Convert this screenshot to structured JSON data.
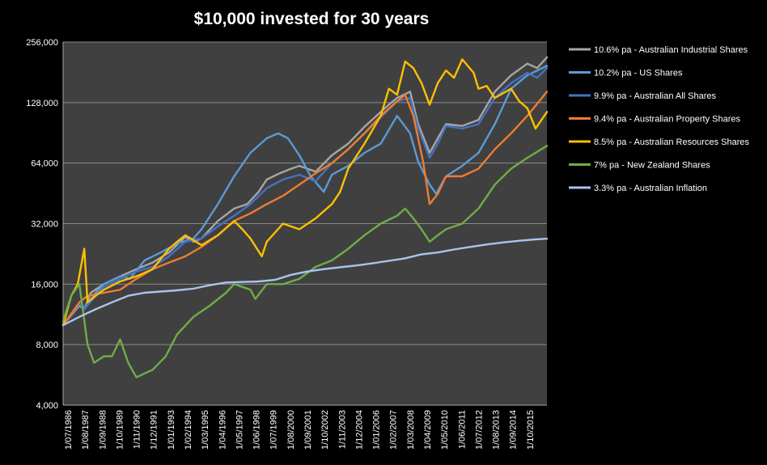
{
  "chart_data": {
    "type": "line",
    "title": "$10,000 invested for 30 years",
    "xlabel": "",
    "ylabel": "",
    "y_scale": "log2",
    "ylim": [
      4000,
      256000
    ],
    "y_ticks": [
      "4,000",
      "8,000",
      "16,000",
      "32,000",
      "64,000",
      "128,000",
      "256,000"
    ],
    "y_tick_values": [
      4000,
      8000,
      16000,
      32000,
      64000,
      128000,
      256000
    ],
    "xlim": [
      1986.5,
      2016.2
    ],
    "x_ticks": [
      "1/07/1986",
      "1/08/1987",
      "1/09/1988",
      "1/10/1989",
      "1/11/1990",
      "1/12/1991",
      "1/01/1993",
      "1/02/1994",
      "1/03/1995",
      "1/04/1996",
      "1/05/1997",
      "1/06/1998",
      "1/07/1999",
      "1/08/2000",
      "1/09/2001",
      "1/10/2002",
      "1/11/2003",
      "1/12/2004",
      "1/01/2006",
      "1/02/2007",
      "1/03/2008",
      "1/04/2009",
      "1/05/2010",
      "1/06/2011",
      "1/07/2012",
      "1/08/2013",
      "1/09/2014",
      "1/10/2015"
    ],
    "plot_background": "#404040",
    "gridlines": true,
    "legend_position": "right",
    "series": [
      {
        "name": "10.6% pa - Australian Industrial Shares",
        "color": "#a6a6a6",
        "x": [
          1986.5,
          1987.5,
          1987.8,
          1988.2,
          1989.0,
          1990.0,
          1991.0,
          1992.0,
          1993.0,
          1994.0,
          1994.5,
          1995.0,
          1996.0,
          1997.0,
          1997.8,
          1998.5,
          1999.0,
          1999.8,
          2000.5,
          2001.0,
          2002.0,
          2003.0,
          2004.0,
          2005.0,
          2006.0,
          2006.5,
          2007.0,
          2007.8,
          2008.3,
          2009.0,
          2009.5,
          2010.0,
          2011.0,
          2012.0,
          2013.0,
          2014.0,
          2015.0,
          2015.6,
          2016.2
        ],
        "y": [
          10000,
          12500,
          12000,
          14500,
          16000,
          17500,
          19000,
          20500,
          23000,
          27500,
          26000,
          27000,
          33000,
          38000,
          40000,
          46000,
          53000,
          57000,
          60000,
          62000,
          58000,
          70000,
          80000,
          97000,
          115000,
          125000,
          135000,
          145000,
          100000,
          72000,
          85000,
          100000,
          98000,
          105000,
          145000,
          175000,
          200000,
          190000,
          215000
        ]
      },
      {
        "name": "10.2% pa - US Shares",
        "color": "#5b9bd5",
        "x": [
          1986.5,
          1987.5,
          1987.8,
          1988.5,
          1989.0,
          1990.0,
          1990.6,
          1991.5,
          1992.5,
          1993.5,
          1994.5,
          1995.0,
          1996.0,
          1997.0,
          1998.0,
          1999.0,
          1999.7,
          2000.3,
          2001.0,
          2001.7,
          2002.5,
          2003.0,
          2004.0,
          2005.0,
          2006.0,
          2007.0,
          2007.8,
          2008.3,
          2009.0,
          2009.4,
          2010.0,
          2011.0,
          2012.0,
          2013.0,
          2014.0,
          2015.0,
          2016.2
        ],
        "y": [
          10000,
          12800,
          12200,
          14500,
          16000,
          17500,
          17000,
          21000,
          23000,
          25500,
          27000,
          30000,
          40000,
          55000,
          72000,
          85000,
          90000,
          85000,
          70000,
          55000,
          46000,
          56000,
          62000,
          72000,
          80000,
          110000,
          90000,
          65000,
          50000,
          45000,
          55000,
          62000,
          72000,
          100000,
          150000,
          175000,
          195000
        ]
      },
      {
        "name": "9.9% pa - Australian All Shares",
        "color": "#4472c4",
        "x": [
          1986.5,
          1987.5,
          1987.8,
          1988.5,
          1989.0,
          1990.0,
          1991.0,
          1992.0,
          1993.0,
          1994.0,
          1995.0,
          1996.0,
          1997.0,
          1998.0,
          1999.0,
          2000.0,
          2001.0,
          2002.0,
          2003.0,
          2004.0,
          2005.0,
          2006.0,
          2007.0,
          2007.8,
          2008.3,
          2009.0,
          2009.5,
          2010.0,
          2011.0,
          2012.0,
          2013.0,
          2014.0,
          2015.0,
          2015.6,
          2016.2
        ],
        "y": [
          10000,
          12800,
          12000,
          14000,
          15500,
          17000,
          18500,
          19500,
          22000,
          26000,
          27000,
          31000,
          35000,
          40000,
          48000,
          53000,
          56000,
          52000,
          64000,
          75000,
          90000,
          108000,
          130000,
          135000,
          95000,
          68000,
          80000,
          98000,
          95000,
          100000,
          135000,
          160000,
          180000,
          170000,
          190000
        ]
      },
      {
        "name": "9.4% pa - Australian Property Shares",
        "color": "#ed7d31",
        "x": [
          1986.5,
          1987.5,
          1988.0,
          1989.0,
          1990.0,
          1991.0,
          1992.0,
          1993.0,
          1994.0,
          1995.0,
          1996.0,
          1997.0,
          1998.0,
          1999.0,
          2000.0,
          2001.0,
          2002.0,
          2003.0,
          2004.0,
          2005.0,
          2006.0,
          2007.0,
          2007.5,
          2008.0,
          2008.6,
          2009.0,
          2009.5,
          2010.0,
          2011.0,
          2012.0,
          2013.0,
          2014.0,
          2015.0,
          2016.2
        ],
        "y": [
          10000,
          13000,
          14000,
          14500,
          15000,
          17000,
          19000,
          20500,
          22000,
          24500,
          28000,
          33000,
          36000,
          40000,
          44000,
          50000,
          57000,
          64000,
          75000,
          90000,
          110000,
          130000,
          140000,
          110000,
          65000,
          40000,
          45000,
          55000,
          55000,
          60000,
          75000,
          90000,
          110000,
          145000
        ]
      },
      {
        "name": "8.5% pa - Australian Resources Shares",
        "color": "#ffc000",
        "x": [
          1986.5,
          1987.0,
          1987.4,
          1987.8,
          1988.0,
          1988.5,
          1989.0,
          1990.0,
          1991.0,
          1992.0,
          1993.0,
          1993.5,
          1994.0,
          1995.0,
          1996.0,
          1997.0,
          1997.5,
          1998.0,
          1998.7,
          1999.0,
          2000.0,
          2001.0,
          2002.0,
          2003.0,
          2003.5,
          2004.0,
          2005.0,
          2006.0,
          2006.5,
          2007.0,
          2007.5,
          2008.0,
          2008.5,
          2009.0,
          2009.5,
          2010.0,
          2010.5,
          2011.0,
          2011.7,
          2012.0,
          2012.5,
          2013.0,
          2014.0,
          2014.5,
          2015.0,
          2015.5,
          2016.2
        ],
        "y": [
          10000,
          14000,
          16000,
          24000,
          13000,
          14000,
          15000,
          16500,
          17500,
          19000,
          24000,
          26000,
          28000,
          25000,
          28000,
          33000,
          30000,
          27000,
          22000,
          26000,
          32000,
          30000,
          34000,
          40000,
          46000,
          60000,
          80000,
          110000,
          150000,
          140000,
          205000,
          190000,
          160000,
          125000,
          160000,
          185000,
          170000,
          210000,
          180000,
          150000,
          155000,
          135000,
          150000,
          130000,
          120000,
          95000,
          115000
        ]
      },
      {
        "name": "7% pa - New Zealand Shares",
        "color": "#70ad47",
        "x": [
          1986.5,
          1987.0,
          1987.5,
          1988.0,
          1988.4,
          1989.0,
          1989.5,
          1990.0,
          1990.5,
          1991.0,
          1992.0,
          1992.8,
          1993.5,
          1994.5,
          1995.5,
          1996.5,
          1997.0,
          1998.0,
          1998.3,
          1999.0,
          2000.0,
          2001.0,
          2002.0,
          2003.0,
          2004.0,
          2005.0,
          2006.0,
          2007.0,
          2007.5,
          2008.0,
          2008.5,
          2009.0,
          2009.5,
          2010.0,
          2011.0,
          2012.0,
          2013.0,
          2014.0,
          2015.0,
          2016.2
        ],
        "y": [
          10500,
          14000,
          16000,
          8000,
          6500,
          7000,
          7000,
          8500,
          6500,
          5500,
          6000,
          7000,
          9000,
          11000,
          12500,
          14500,
          16000,
          15000,
          13500,
          16000,
          16000,
          17000,
          19500,
          21000,
          24000,
          28000,
          32000,
          35000,
          38000,
          34000,
          30000,
          26000,
          28000,
          30000,
          32000,
          38000,
          50000,
          60000,
          68000,
          78000
        ]
      },
      {
        "name": "3.3% pa - Australian Inflation",
        "color": "#a9c4eb",
        "x": [
          1986.5,
          1987.5,
          1988.5,
          1989.5,
          1990.5,
          1991.5,
          1992.5,
          1993.5,
          1994.5,
          1995.5,
          1996.5,
          1997.5,
          1998.5,
          1999.5,
          2000.5,
          2001.5,
          2002.5,
          2003.5,
          2004.5,
          2005.5,
          2006.5,
          2007.5,
          2008.5,
          2009.5,
          2010.5,
          2011.5,
          2012.5,
          2013.5,
          2014.5,
          2015.5,
          2016.2
        ],
        "y": [
          10000,
          11000,
          12000,
          13000,
          14000,
          14500,
          14700,
          14900,
          15200,
          15800,
          16300,
          16400,
          16500,
          16800,
          17800,
          18500,
          19000,
          19400,
          19800,
          20300,
          20900,
          21500,
          22500,
          23000,
          23800,
          24500,
          25200,
          25800,
          26300,
          26700,
          26900
        ]
      }
    ]
  }
}
